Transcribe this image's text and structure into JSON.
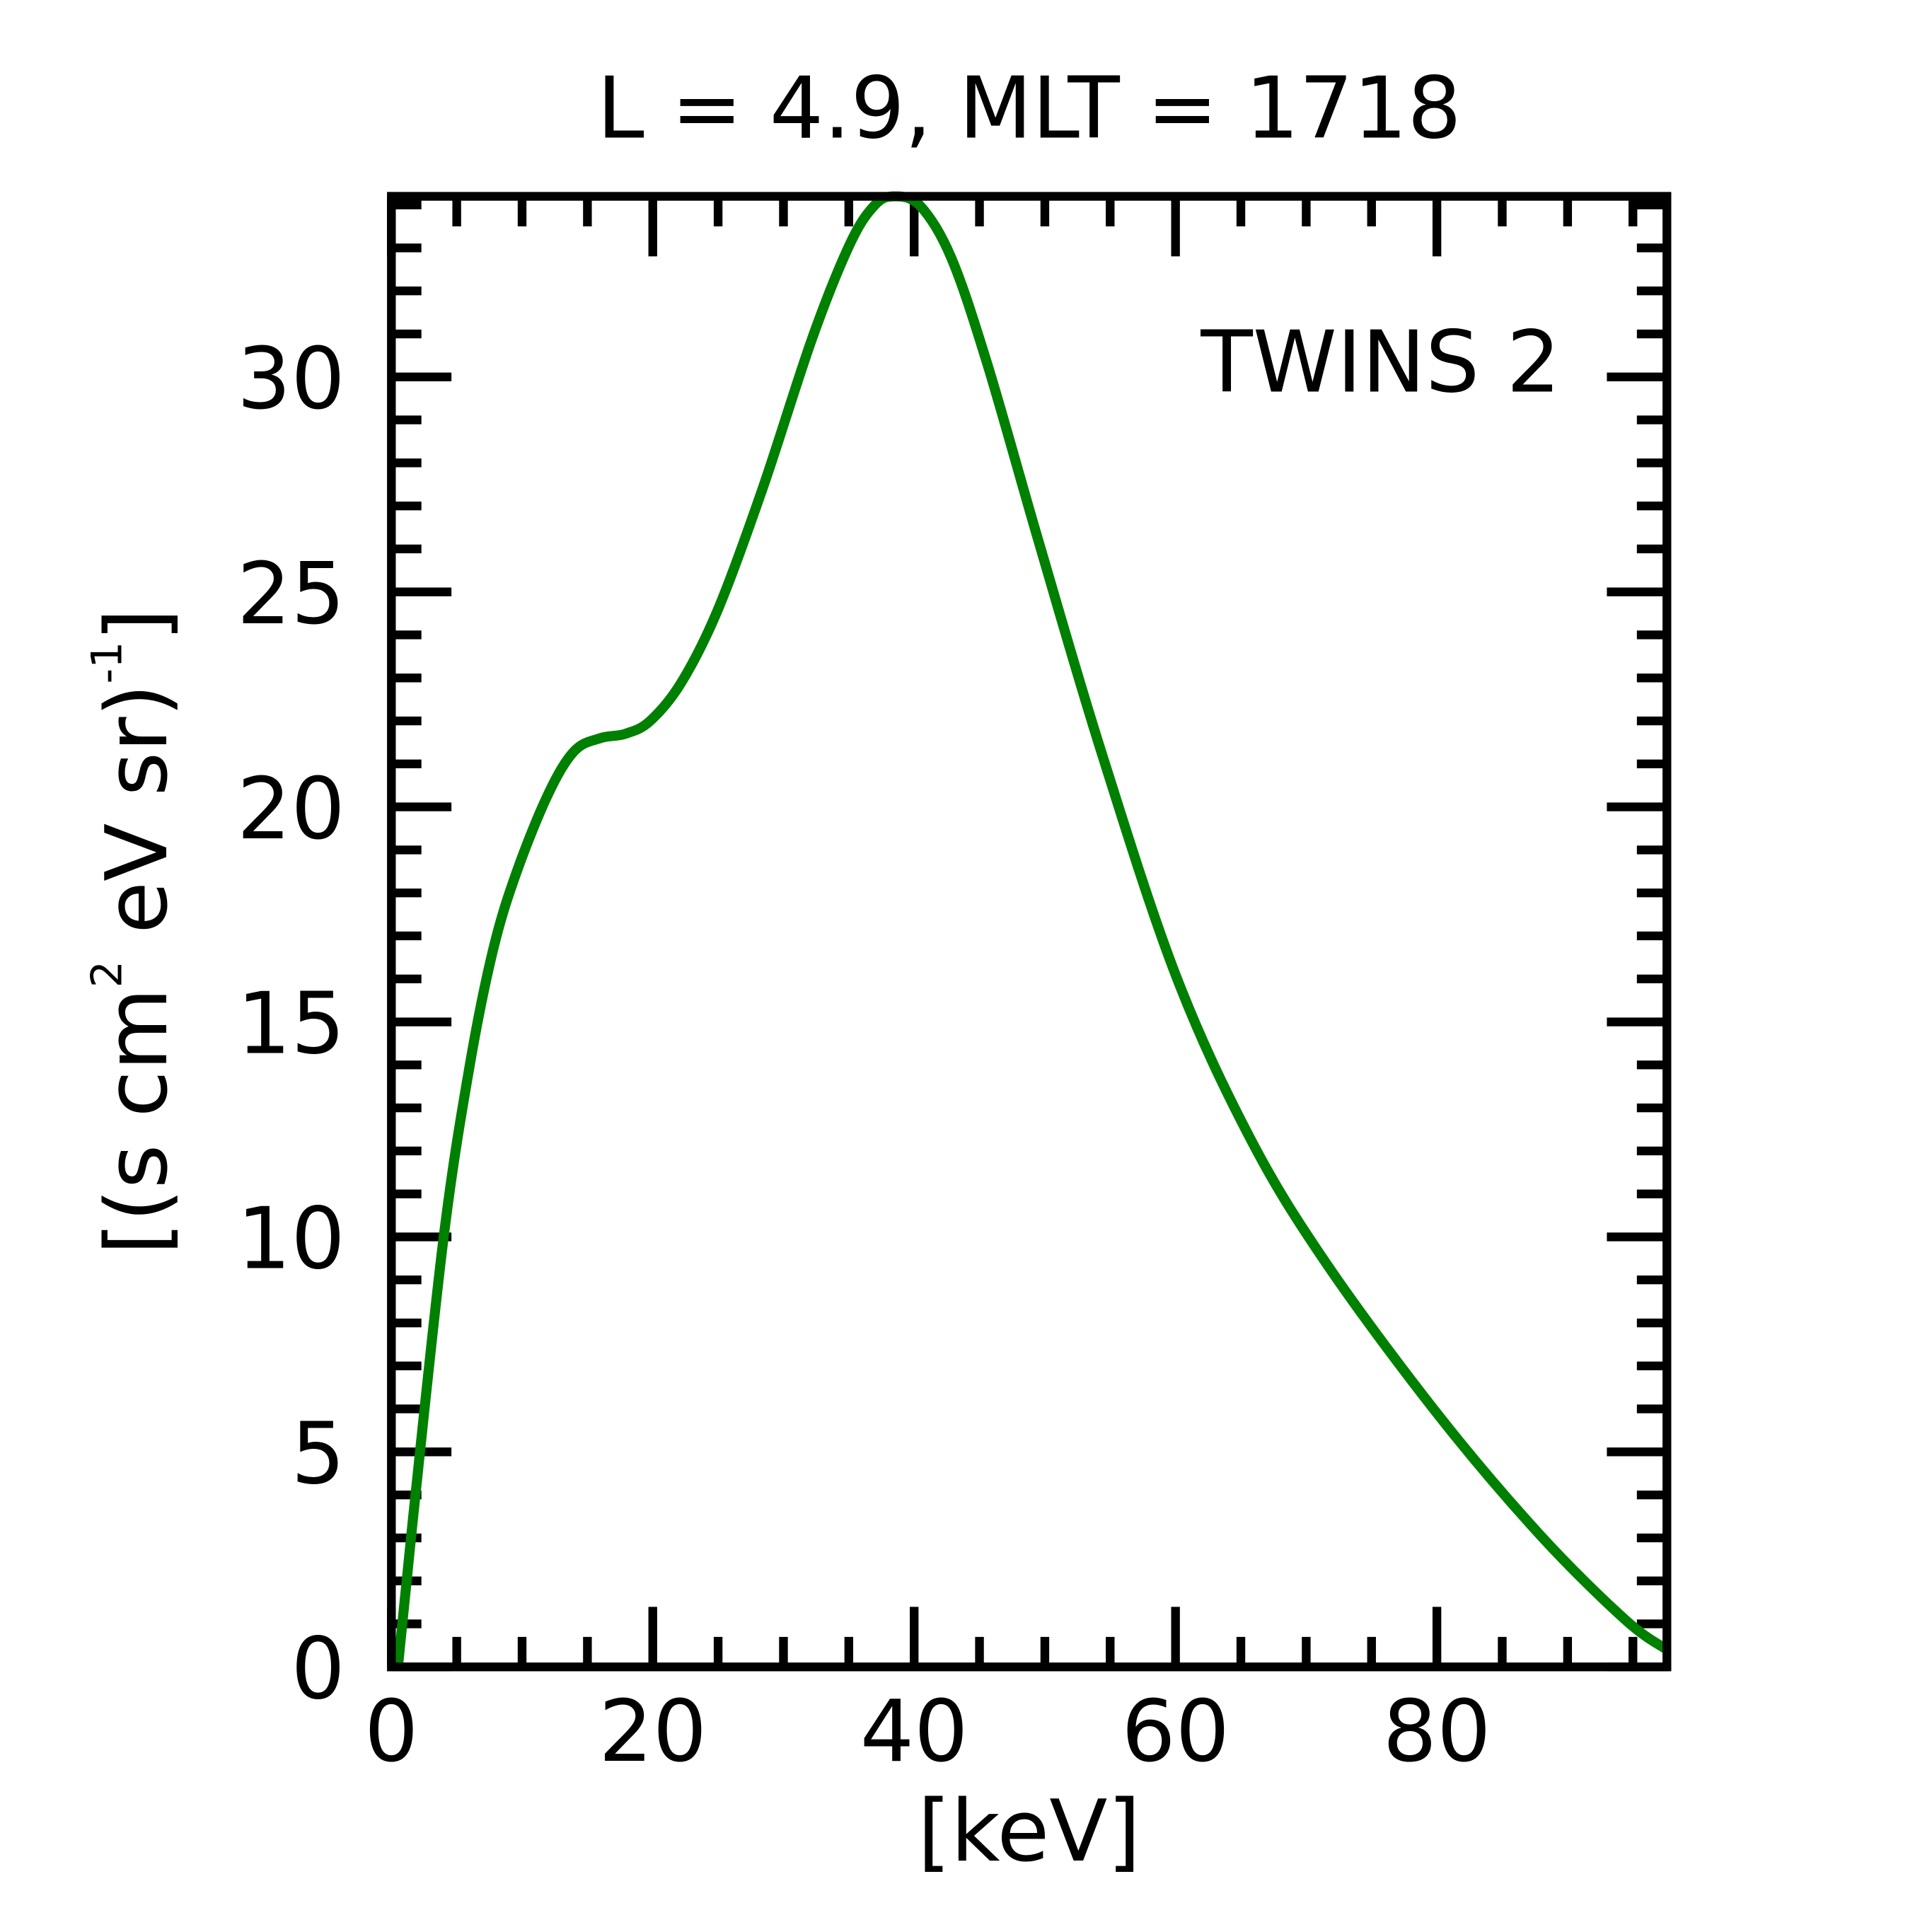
{
  "chart_data": {
    "type": "line",
    "title": "L =  4.9, MLT = 1718",
    "xlabel": "[keV]",
    "ylabel": {
      "prefix": "[(s cm",
      "sup1": "2",
      "middle": " eV sr)",
      "sup2": "-1",
      "suffix": "]"
    },
    "xlim": [
      0,
      97.6
    ],
    "ylim": [
      0,
      34.2
    ],
    "xticks": [
      0,
      20,
      40,
      60,
      80
    ],
    "xtick_labels": [
      "0",
      "20",
      "40",
      "60",
      "80"
    ],
    "yticks": [
      0,
      5,
      10,
      15,
      20,
      25,
      30
    ],
    "ytick_labels": [
      "0",
      "5",
      "10",
      "15",
      "20",
      "25",
      "30"
    ],
    "x_minor_step": 5,
    "y_minor_step": 1,
    "grid": false,
    "legend": {
      "text": "TWINS 2",
      "placement": "top-right"
    },
    "series": [
      {
        "name": "TWINS 2",
        "color": "#008000",
        "x": [
          0.5,
          1.6,
          4,
          6,
          7.8,
          9.6,
          12,
          14,
          16,
          17.9,
          19.8,
          22.2,
          25,
          28.4,
          32.2,
          35.1,
          37,
          38.5,
          40.4,
          42.8,
          45.6,
          49.5,
          54.3,
          60,
          65.7,
          71.5,
          80,
          87.8,
          94.4,
          97.6
        ],
        "y": [
          0,
          3.3,
          10,
          14,
          16.7,
          18.5,
          20.3,
          21.3,
          21.6,
          21.7,
          22.0,
          22.9,
          24.6,
          27.4,
          30.9,
          33.1,
          34.0,
          34.3,
          34.0,
          32.8,
          30.3,
          26.2,
          21.3,
          16.1,
          12.3,
          9.4,
          5.9,
          3.1,
          1.1,
          0.4
        ]
      }
    ]
  }
}
